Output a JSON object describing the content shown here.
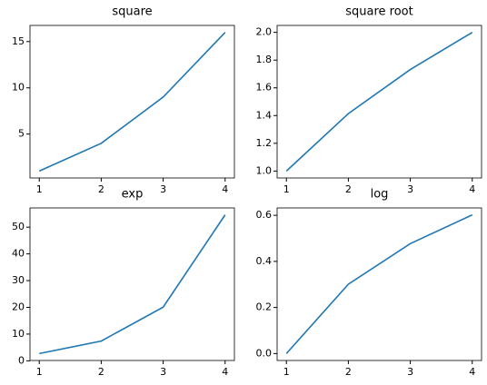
{
  "chart_data": [
    {
      "type": "line",
      "title": "square",
      "x": [
        1,
        2,
        3,
        4
      ],
      "series": [
        {
          "color": "#1f77b4",
          "values": [
            1,
            4,
            9,
            16
          ]
        }
      ],
      "xlim": [
        0.85,
        4.15
      ],
      "xticks": [
        1,
        2,
        3,
        4
      ],
      "ylim": [
        0.25,
        16.75
      ],
      "yticks": [
        5,
        10,
        15
      ]
    },
    {
      "type": "line",
      "title": "square root",
      "x": [
        1,
        2,
        3,
        4
      ],
      "series": [
        {
          "color": "#1f77b4",
          "values": [
            1,
            1.414,
            1.732,
            2
          ]
        }
      ],
      "xlim": [
        0.85,
        4.15
      ],
      "xticks": [
        1,
        2,
        3,
        4
      ],
      "ylim": [
        0.95,
        2.05
      ],
      "yticks": [
        {
          "value": 1,
          "label": "1.0"
        },
        1.2,
        1.4,
        1.6,
        1.8,
        {
          "value": 2,
          "label": "2.0"
        }
      ]
    },
    {
      "type": "line",
      "title": "exp",
      "x": [
        1,
        2,
        3,
        4
      ],
      "series": [
        {
          "color": "#1f77b4",
          "values": [
            2.718,
            7.389,
            20.086,
            54.598
          ]
        }
      ],
      "xlim": [
        0.85,
        4.15
      ],
      "xticks": [
        1,
        2,
        3,
        4
      ],
      "ylim": [
        0.124,
        57.19
      ],
      "yticks": [
        0,
        10,
        20,
        30,
        40,
        50
      ]
    },
    {
      "type": "line",
      "title": "log",
      "x": [
        1,
        2,
        3,
        4
      ],
      "series": [
        {
          "color": "#1f77b4",
          "values": [
            0,
            0.301,
            0.477,
            0.602
          ]
        }
      ],
      "xlim": [
        0.85,
        4.15
      ],
      "xticks": [
        1,
        2,
        3,
        4
      ],
      "ylim": [
        -0.0301,
        0.632
      ],
      "yticks": [
        {
          "value": 0,
          "label": "0.0"
        },
        0.2,
        0.4,
        0.6
      ]
    }
  ]
}
